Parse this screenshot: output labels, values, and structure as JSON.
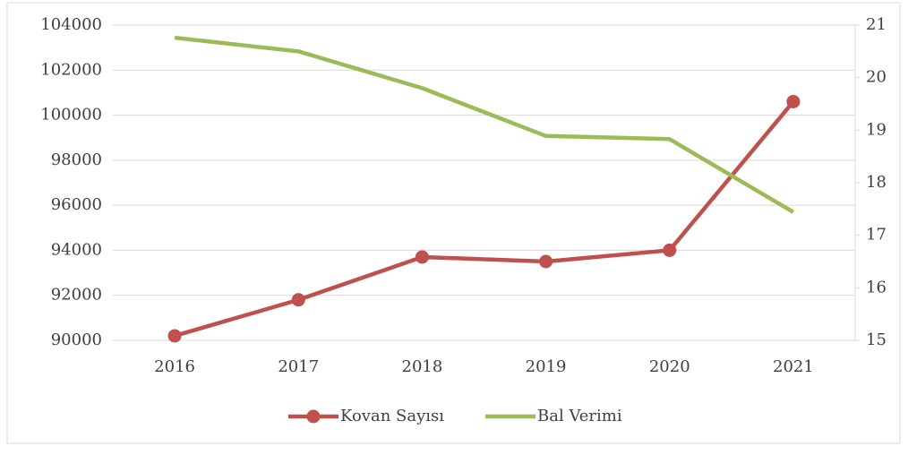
{
  "chart_data": {
    "type": "line",
    "categories": [
      "2016",
      "2017",
      "2018",
      "2019",
      "2020",
      "2021"
    ],
    "series": [
      {
        "name": "Kovan Sayısı",
        "color": "#c0504d",
        "values": [
          90200,
          91800,
          93700,
          93500,
          94000,
          100600
        ],
        "markers": true
      },
      {
        "name": "Bal Verimi",
        "color": "#9bbb59",
        "values": [
          20.76,
          20.5,
          19.8,
          18.89,
          18.83,
          17.44
        ],
        "axis": "y2",
        "markers": false
      }
    ],
    "ylim": [
      90000,
      104000
    ],
    "yticks": [
      90000,
      92000,
      94000,
      96000,
      98000,
      100000,
      102000,
      104000
    ],
    "y2lim": [
      15,
      21
    ],
    "y2ticks": [
      15,
      16,
      17,
      18,
      19,
      20,
      21
    ],
    "grid": true,
    "legend": "bottom"
  }
}
